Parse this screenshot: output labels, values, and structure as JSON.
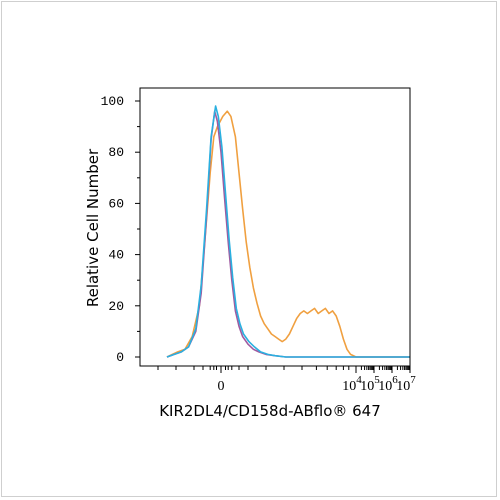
{
  "chart_data": {
    "type": "area",
    "xlabel": "KIR2DL4/CD158d-ABflo® 647",
    "ylabel": "Relative Cell Number",
    "ylim": [
      0,
      100
    ],
    "y_ticks": [
      "0",
      "20",
      "40",
      "60",
      "80",
      "100"
    ],
    "x_scale": "biexponential",
    "x_ticks": [
      {
        "base": "0",
        "exp": ""
      },
      {
        "base": "10",
        "exp": "4"
      },
      {
        "base": "10",
        "exp": "5"
      },
      {
        "base": "10",
        "exp": "6"
      },
      {
        "base": "10",
        "exp": "7"
      }
    ],
    "grid": false,
    "series": [
      {
        "color": "#f0a040",
        "values": [
          [
            -3.0,
            0
          ],
          [
            -2.7,
            1
          ],
          [
            -2.4,
            2
          ],
          [
            -2.0,
            3
          ],
          [
            -1.6,
            8
          ],
          [
            -1.2,
            20
          ],
          [
            -0.9,
            45
          ],
          [
            -0.6,
            72
          ],
          [
            -0.4,
            86
          ],
          [
            -0.2,
            90
          ],
          [
            0.1,
            94
          ],
          [
            0.35,
            96
          ],
          [
            0.55,
            94
          ],
          [
            0.8,
            86
          ],
          [
            1.0,
            72
          ],
          [
            1.2,
            58
          ],
          [
            1.4,
            45
          ],
          [
            1.6,
            35
          ],
          [
            1.8,
            27
          ],
          [
            2.0,
            21
          ],
          [
            2.2,
            16
          ],
          [
            2.4,
            13
          ],
          [
            2.6,
            11
          ],
          [
            2.8,
            9
          ],
          [
            3.0,
            8
          ],
          [
            3.2,
            7
          ],
          [
            3.4,
            6
          ],
          [
            3.6,
            7
          ],
          [
            3.8,
            9
          ],
          [
            4.0,
            12
          ],
          [
            4.2,
            15
          ],
          [
            4.4,
            17
          ],
          [
            4.6,
            18
          ],
          [
            4.8,
            17
          ],
          [
            5.0,
            18
          ],
          [
            5.2,
            19
          ],
          [
            5.4,
            17
          ],
          [
            5.6,
            18
          ],
          [
            5.8,
            19
          ],
          [
            6.0,
            17
          ],
          [
            6.2,
            18
          ],
          [
            6.4,
            16
          ],
          [
            6.6,
            12
          ],
          [
            6.8,
            7
          ],
          [
            7.0,
            3
          ],
          [
            7.2,
            1
          ],
          [
            7.5,
            0
          ],
          [
            8.0,
            0
          ],
          [
            9.0,
            0
          ],
          [
            10.5,
            0
          ]
        ]
      },
      {
        "color": "#a05aa0",
        "values": [
          [
            -3.0,
            0
          ],
          [
            -2.6,
            1
          ],
          [
            -2.2,
            2
          ],
          [
            -1.8,
            4
          ],
          [
            -1.4,
            10
          ],
          [
            -1.1,
            25
          ],
          [
            -0.8,
            55
          ],
          [
            -0.55,
            85
          ],
          [
            -0.35,
            96
          ],
          [
            -0.2,
            92
          ],
          [
            0.0,
            80
          ],
          [
            0.2,
            62
          ],
          [
            0.4,
            45
          ],
          [
            0.6,
            30
          ],
          [
            0.8,
            18
          ],
          [
            1.0,
            12
          ],
          [
            1.2,
            8
          ],
          [
            1.5,
            5
          ],
          [
            1.8,
            3
          ],
          [
            2.1,
            2
          ],
          [
            2.5,
            1
          ],
          [
            3.0,
            0.5
          ],
          [
            3.6,
            0
          ],
          [
            10.5,
            0
          ]
        ]
      },
      {
        "color": "#2ab0e0",
        "values": [
          [
            -3.0,
            0
          ],
          [
            -2.6,
            1
          ],
          [
            -2.2,
            2
          ],
          [
            -1.8,
            4
          ],
          [
            -1.4,
            11
          ],
          [
            -1.1,
            28
          ],
          [
            -0.8,
            58
          ],
          [
            -0.55,
            86
          ],
          [
            -0.3,
            98
          ],
          [
            -0.15,
            94
          ],
          [
            0.05,
            82
          ],
          [
            0.25,
            64
          ],
          [
            0.45,
            46
          ],
          [
            0.65,
            31
          ],
          [
            0.85,
            19
          ],
          [
            1.05,
            13
          ],
          [
            1.25,
            9
          ],
          [
            1.55,
            6
          ],
          [
            1.85,
            4
          ],
          [
            2.2,
            2
          ],
          [
            2.6,
            1
          ],
          [
            3.0,
            0.5
          ],
          [
            3.6,
            0
          ],
          [
            10.5,
            0
          ]
        ]
      }
    ]
  }
}
